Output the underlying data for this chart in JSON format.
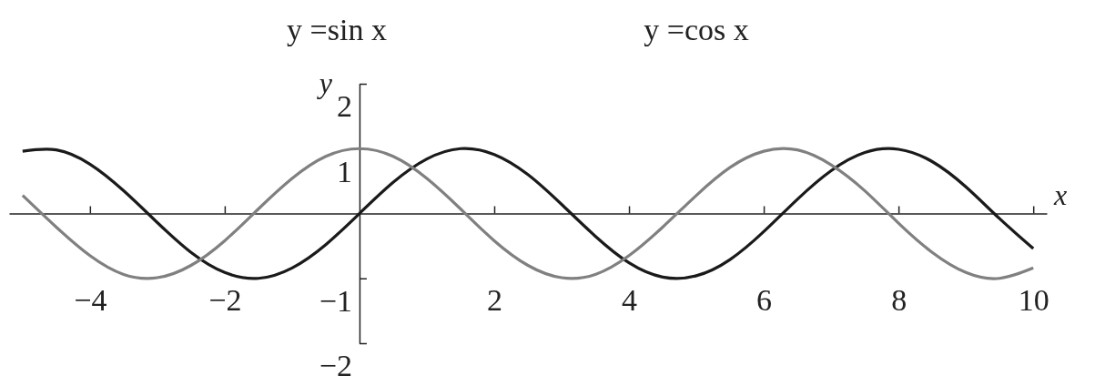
{
  "chart_data": {
    "type": "line",
    "xlabel": "x",
    "ylabel": "y",
    "annotations": [
      "y =sin x",
      "y =cos x"
    ],
    "x": [
      -5,
      -4.5,
      -4,
      -3.5,
      -3,
      -2.5,
      -2,
      -1.5,
      -1,
      -0.5,
      0,
      0.5,
      1,
      1.5,
      2,
      2.5,
      3,
      3.5,
      4,
      4.5,
      5,
      5.5,
      6,
      6.5,
      7,
      7.5,
      8,
      8.5,
      9,
      9.5,
      10
    ],
    "series": [
      {
        "color": "#1a1a1a",
        "values": [
          0.96,
          0.98,
          0.76,
          0.35,
          -0.14,
          -0.6,
          -0.91,
          -1.0,
          -0.84,
          -0.48,
          0,
          0.48,
          0.84,
          1.0,
          0.91,
          0.6,
          0.14,
          -0.35,
          -0.76,
          -0.98,
          -0.96,
          -0.71,
          -0.28,
          0.22,
          0.66,
          0.94,
          0.99,
          0.8,
          0.41,
          -0.08,
          -0.54
        ]
      },
      {
        "color": "#808080",
        "values": [
          0.28,
          -0.21,
          -0.65,
          -0.94,
          -0.99,
          -0.8,
          -0.42,
          0.07,
          0.54,
          0.88,
          1,
          0.88,
          0.54,
          0.07,
          -0.42,
          -0.8,
          -0.99,
          -0.94,
          -0.65,
          -0.21,
          0.28,
          0.71,
          0.96,
          0.98,
          0.75,
          0.35,
          -0.15,
          -0.6,
          -0.91,
          -1.0,
          -0.84
        ]
      }
    ],
    "xlim": [
      -5.2,
      10.2
    ],
    "ylim": [
      -2,
      2
    ],
    "xticks": [
      {
        "value": -4,
        "label": "−4"
      },
      {
        "value": -2,
        "label": "−2"
      },
      2,
      4,
      6,
      8,
      10
    ],
    "yticks": [
      {
        "value": -2,
        "label": "−2"
      },
      {
        "value": -1,
        "label": "−1"
      },
      1,
      2
    ],
    "grid": false,
    "marker": "none",
    "line_style": "solid"
  }
}
